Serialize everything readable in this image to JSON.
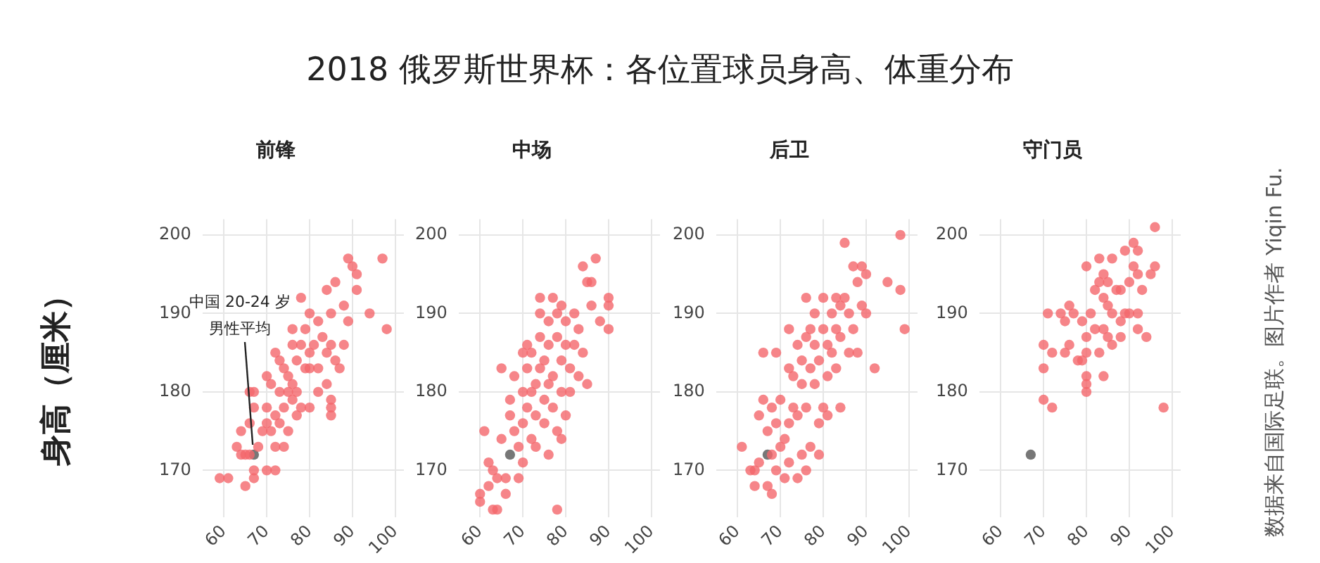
{
  "chart_data": [
    {
      "type": "scatter",
      "title": "2018 俄罗斯世界杯：各位置球员身高、体重分布",
      "subtitle": "前锋",
      "ylabel": "身高（厘米）",
      "marker": "circle",
      "grid": true,
      "xlim": [
        55,
        102
      ],
      "xticks": [
        60,
        70,
        80,
        90,
        100
      ],
      "ylim": [
        164,
        202
      ],
      "yticks": [
        170,
        180,
        190,
        200
      ],
      "annotations": [
        {
          "text": "中国 20-24 岁男性平均",
          "x": 67,
          "y": 172
        }
      ],
      "series": [
        {
          "color": "#f4676c",
          "x": [
            59,
            61,
            65,
            67,
            67,
            63,
            64,
            65,
            66,
            64,
            66,
            67,
            66,
            67,
            68,
            69,
            70,
            70,
            70,
            70,
            71,
            71,
            72,
            72,
            72,
            72,
            73,
            73,
            73,
            74,
            74,
            74,
            75,
            75,
            75,
            76,
            76,
            76,
            76,
            77,
            77,
            77,
            78,
            78,
            78,
            79,
            79,
            80,
            80,
            80,
            80,
            81,
            82,
            82,
            83,
            84,
            84,
            84,
            85,
            85,
            85,
            85,
            86,
            86,
            87,
            88,
            88,
            89,
            89,
            90,
            91,
            91,
            94,
            97,
            98,
            82,
            85
          ],
          "values": [
            169,
            169,
            168,
            169,
            170,
            173,
            172,
            172,
            172,
            175,
            176,
            178,
            180,
            180,
            173,
            175,
            170,
            176,
            178,
            182,
            175,
            181,
            170,
            173,
            177,
            185,
            176,
            180,
            184,
            173,
            178,
            183,
            175,
            180,
            182,
            179,
            181,
            186,
            188,
            177,
            180,
            184,
            186,
            192,
            178,
            183,
            188,
            190,
            185,
            178,
            183,
            186,
            189,
            183,
            187,
            181,
            185,
            193,
            178,
            177,
            190,
            186,
            194,
            184,
            183,
            186,
            191,
            189,
            197,
            196,
            195,
            193,
            190,
            197,
            188,
            180,
            179
          ]
        },
        {
          "color": "#555555",
          "x": [
            67
          ],
          "values": [
            172
          ]
        }
      ]
    },
    {
      "type": "scatter",
      "subtitle": "中场",
      "marker": "circle",
      "grid": true,
      "xlim": [
        55,
        102
      ],
      "xticks": [
        60,
        70,
        80,
        90,
        100
      ],
      "ylim": [
        164,
        202
      ],
      "yticks": [
        170,
        180,
        190,
        200
      ],
      "series": [
        {
          "color": "#f4676c",
          "x": [
            60,
            60,
            61,
            62,
            62,
            63,
            64,
            63,
            64,
            65,
            65,
            66,
            66,
            67,
            67,
            68,
            68,
            69,
            69,
            70,
            70,
            70,
            70,
            71,
            71,
            72,
            72,
            72,
            73,
            73,
            73,
            74,
            74,
            74,
            74,
            75,
            75,
            75,
            76,
            76,
            76,
            77,
            77,
            77,
            78,
            78,
            78,
            78,
            79,
            79,
            79,
            80,
            80,
            80,
            81,
            81,
            82,
            82,
            83,
            83,
            84,
            84,
            85,
            85,
            86,
            86,
            87,
            88,
            90,
            90,
            90,
            79,
            76,
            71
          ],
          "values": [
            167,
            166,
            175,
            171,
            168,
            165,
            165,
            170,
            169,
            183,
            174,
            167,
            169,
            179,
            177,
            182,
            175,
            169,
            173,
            171,
            176,
            180,
            185,
            178,
            183,
            185,
            180,
            174,
            173,
            177,
            181,
            192,
            190,
            187,
            183,
            176,
            179,
            184,
            172,
            186,
            189,
            192,
            178,
            182,
            165,
            175,
            187,
            190,
            180,
            184,
            191,
            177,
            186,
            189,
            183,
            180,
            186,
            190,
            182,
            188,
            185,
            196,
            194,
            181,
            191,
            194,
            197,
            189,
            192,
            191,
            188,
            174,
            181,
            186
          ]
        },
        {
          "color": "#555555",
          "x": [
            67
          ],
          "values": [
            172
          ]
        }
      ]
    },
    {
      "type": "scatter",
      "subtitle": "后卫",
      "marker": "circle",
      "grid": true,
      "xlim": [
        55,
        102
      ],
      "xticks": [
        60,
        70,
        80,
        90,
        100
      ],
      "ylim": [
        164,
        202
      ],
      "yticks": [
        170,
        180,
        190,
        200
      ],
      "series": [
        {
          "color": "#f4676c",
          "x": [
            61,
            63,
            64,
            64,
            65,
            65,
            66,
            66,
            67,
            67,
            68,
            68,
            68,
            69,
            69,
            69,
            70,
            70,
            71,
            71,
            72,
            72,
            72,
            72,
            73,
            73,
            74,
            74,
            74,
            75,
            75,
            75,
            76,
            76,
            76,
            77,
            77,
            77,
            78,
            78,
            78,
            79,
            79,
            80,
            80,
            80,
            81,
            81,
            81,
            82,
            82,
            83,
            83,
            83,
            84,
            84,
            84,
            85,
            85,
            86,
            86,
            87,
            87,
            88,
            88,
            89,
            89,
            90,
            90,
            92,
            95,
            98,
            98,
            99,
            79,
            76
          ],
          "values": [
            173,
            170,
            170,
            168,
            171,
            177,
            179,
            185,
            175,
            168,
            167,
            172,
            178,
            185,
            176,
            170,
            179,
            173,
            174,
            169,
            176,
            188,
            183,
            171,
            178,
            182,
            177,
            169,
            186,
            184,
            181,
            172,
            192,
            187,
            178,
            188,
            183,
            173,
            190,
            186,
            181,
            176,
            184,
            192,
            188,
            178,
            186,
            182,
            177,
            190,
            185,
            192,
            188,
            183,
            191,
            187,
            178,
            199,
            192,
            190,
            185,
            196,
            188,
            194,
            185,
            196,
            191,
            195,
            190,
            183,
            194,
            200,
            193,
            188,
            172,
            170
          ]
        },
        {
          "color": "#555555",
          "x": [
            67
          ],
          "values": [
            172
          ]
        }
      ]
    },
    {
      "type": "scatter",
      "subtitle": "守门员",
      "marker": "circle",
      "grid": true,
      "xlim": [
        55,
        102
      ],
      "xticks": [
        60,
        70,
        80,
        90,
        100
      ],
      "ylim": [
        164,
        202
      ],
      "yticks": [
        170,
        180,
        190,
        200
      ],
      "annotations": [
        "数据来自国际足联。图片作者 Yiqin Fu."
      ],
      "series": [
        {
          "color": "#f4676c",
          "x": [
            70,
            70,
            70,
            71,
            72,
            72,
            74,
            75,
            75,
            76,
            76,
            77,
            78,
            79,
            79,
            80,
            80,
            80,
            80,
            80,
            80,
            81,
            82,
            82,
            83,
            83,
            83,
            84,
            84,
            84,
            84,
            85,
            85,
            85,
            86,
            86,
            86,
            87,
            88,
            88,
            88,
            89,
            89,
            90,
            90,
            91,
            91,
            92,
            92,
            92,
            92,
            93,
            94,
            95,
            96,
            96,
            98
          ],
          "values": [
            186,
            183,
            179,
            190,
            185,
            178,
            190,
            185,
            189,
            191,
            186,
            190,
            184,
            189,
            184,
            196,
            187,
            185,
            182,
            180,
            181,
            190,
            193,
            188,
            197,
            194,
            185,
            195,
            192,
            188,
            182,
            194,
            191,
            187,
            197,
            190,
            186,
            193,
            193,
            187,
            189,
            198,
            190,
            194,
            190,
            199,
            196,
            198,
            195,
            190,
            188,
            193,
            187,
            195,
            196,
            201,
            178
          ]
        },
        {
          "color": "#555555",
          "x": [
            67
          ],
          "values": [
            172
          ]
        }
      ]
    }
  ]
}
